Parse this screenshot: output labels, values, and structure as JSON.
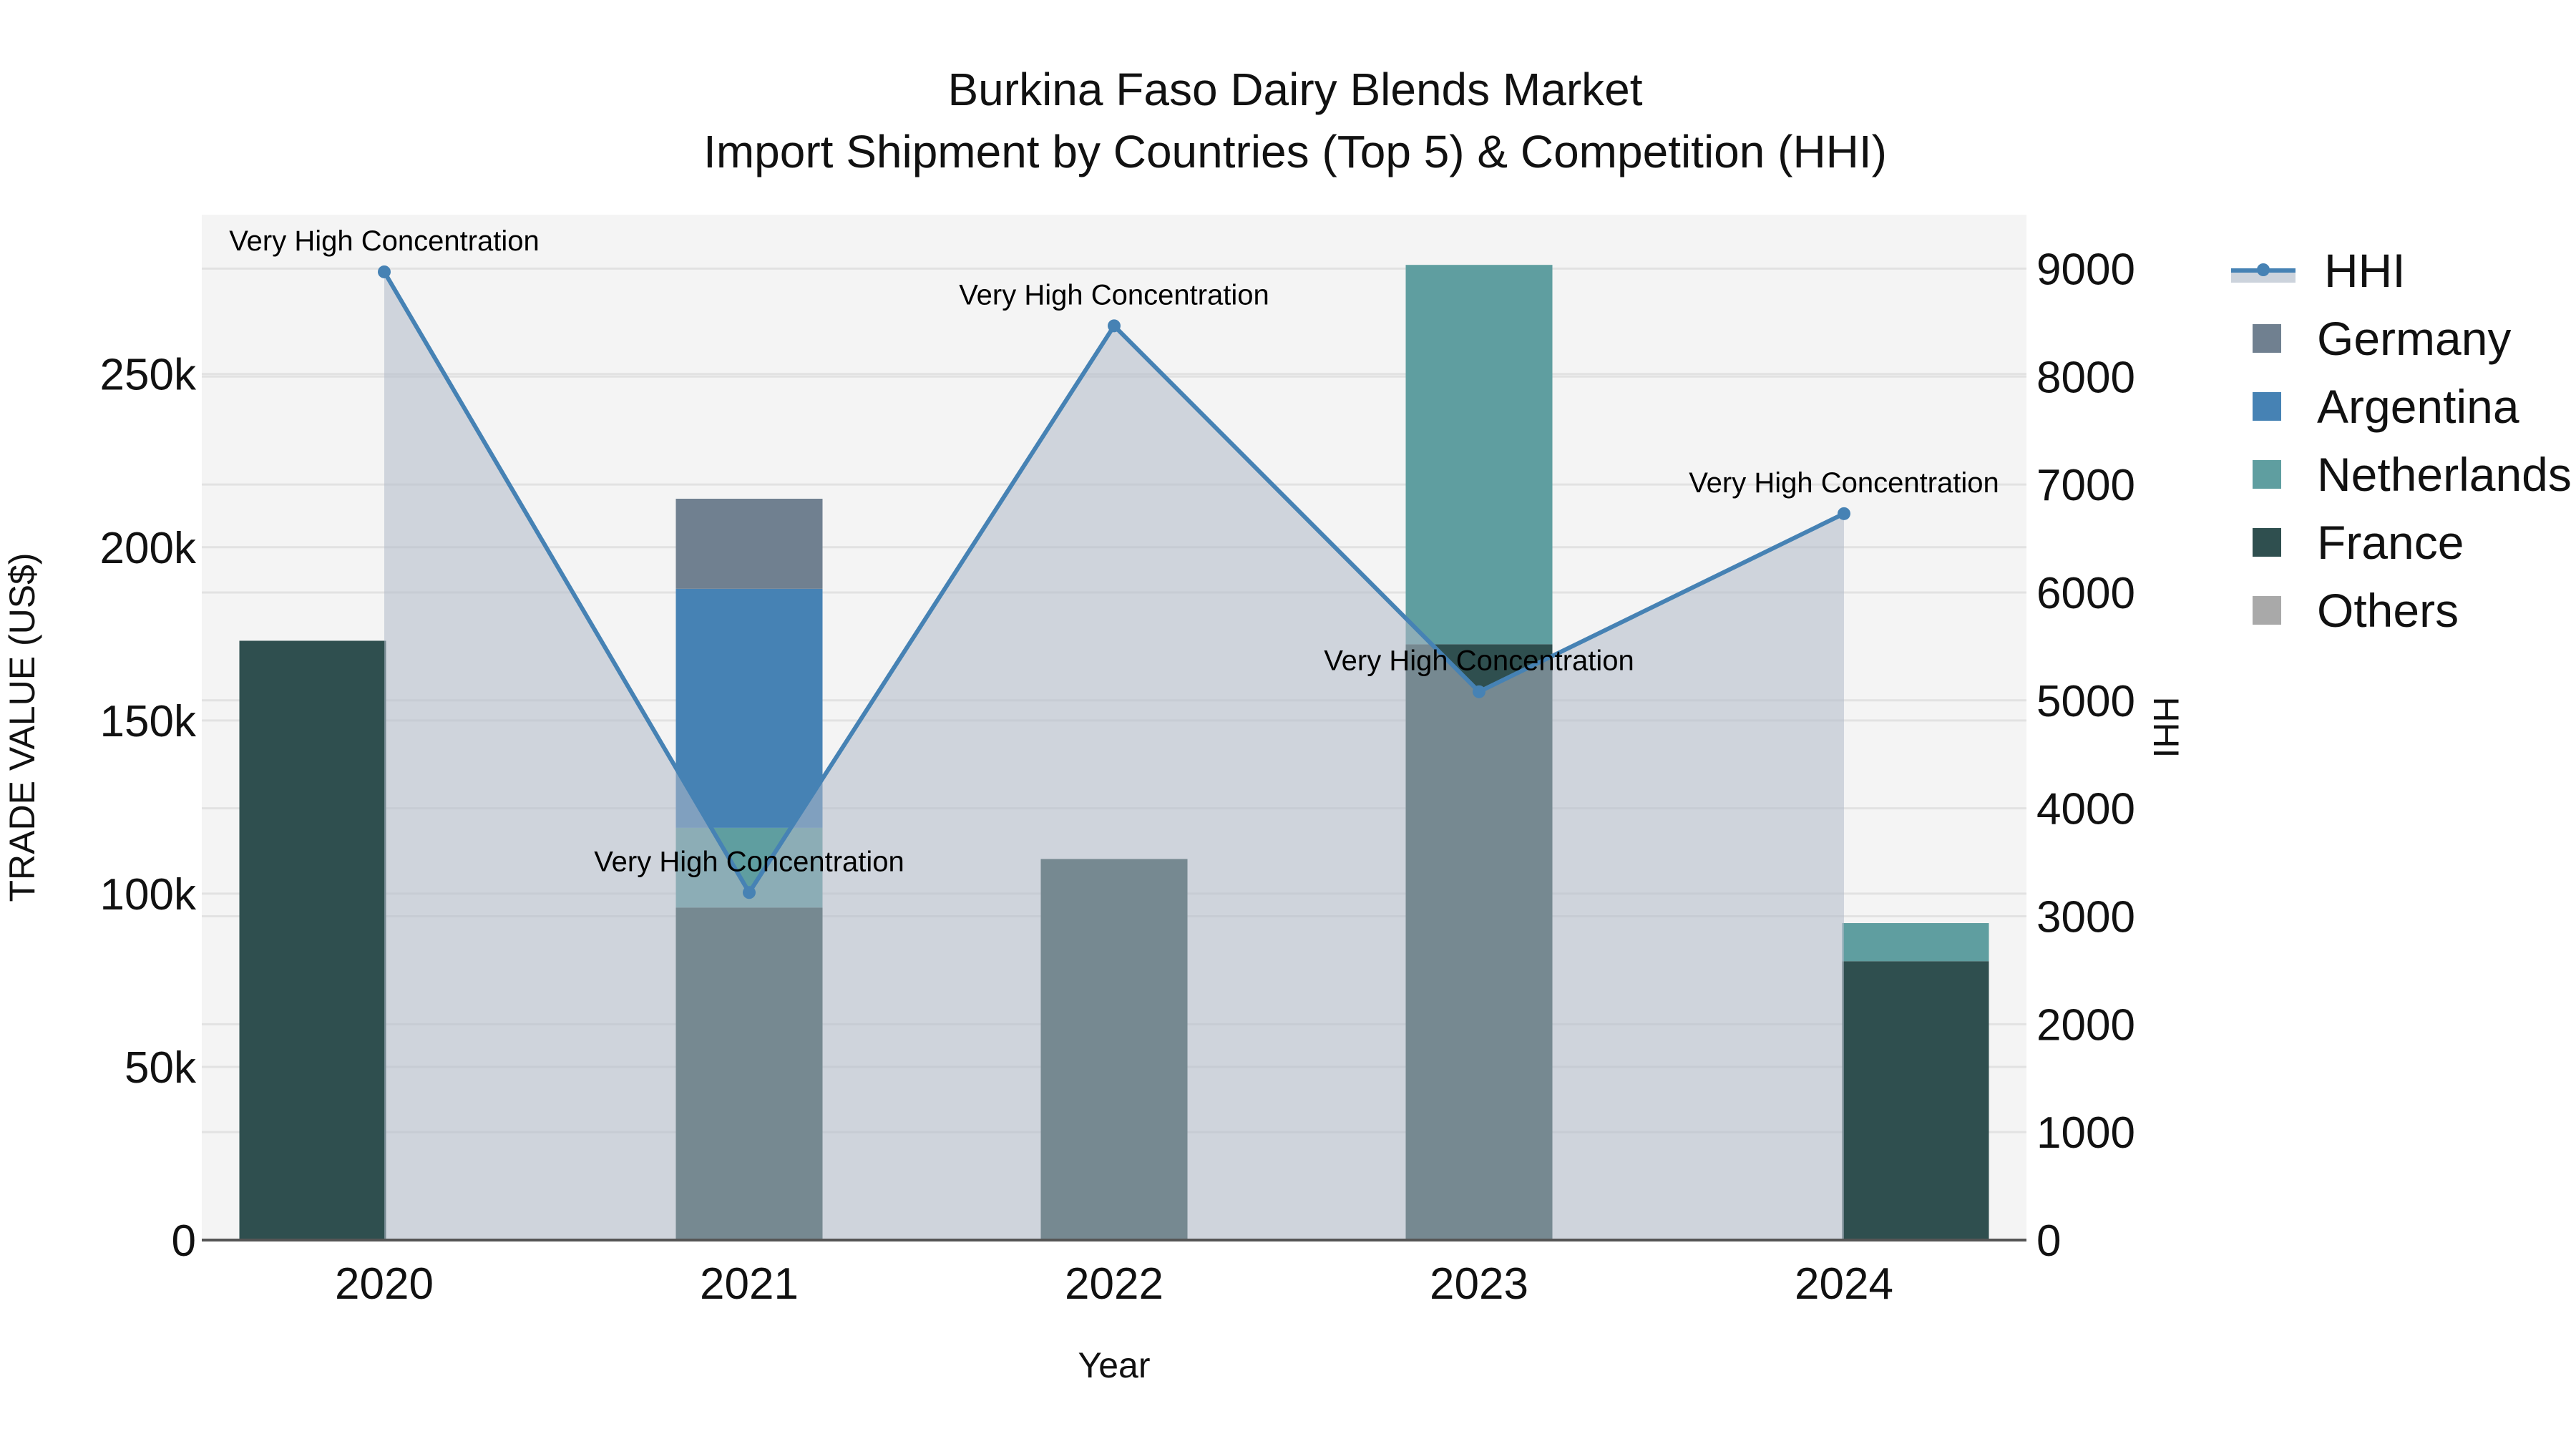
{
  "title": {
    "line1": "Burkina Faso Dairy Blends Market",
    "line2": "Import Shipment by Countries (Top 5) & Competition (HHI)"
  },
  "axes": {
    "x_label": "Year",
    "y_left_label": "TRADE VALUE (US$)",
    "y_right_label": "HHI",
    "x_ticks": [
      "2020",
      "2021",
      "2022",
      "2023",
      "2024"
    ],
    "y_left_ticks": [
      "0",
      "50k",
      "100k",
      "150k",
      "200k",
      "250k"
    ],
    "y_right_ticks": [
      "0",
      "1000",
      "2000",
      "3000",
      "4000",
      "5000",
      "6000",
      "7000",
      "8000",
      "9000"
    ]
  },
  "legend": {
    "items": [
      {
        "label": "HHI",
        "color": "#4682b4",
        "symbol": "line-marker-fill"
      },
      {
        "label": "Germany",
        "color": "#708090"
      },
      {
        "label": "Argentina",
        "color": "#4682b4"
      },
      {
        "label": "Netherlands",
        "color": "#5f9ea0"
      },
      {
        "label": "France",
        "color": "#2f4f4f"
      },
      {
        "label": "Others",
        "color": "#a9a9a9"
      }
    ]
  },
  "annotations": [
    {
      "year": "2020",
      "text": "Very High Concentration"
    },
    {
      "year": "2021",
      "text": "Very High Concentration"
    },
    {
      "year": "2022",
      "text": "Very High Concentration"
    },
    {
      "year": "2023",
      "text": "Very High Concentration"
    },
    {
      "year": "2024",
      "text": "Very High Concentration"
    }
  ],
  "chart_data": {
    "type": "bar",
    "title": "Burkina Faso Dairy Blends Market — Import Shipment by Countries (Top 5) & Competition (HHI)",
    "xlabel": "Year",
    "ylabel": "TRADE VALUE (US$)",
    "y2label": "HHI",
    "categories": [
      "2020",
      "2021",
      "2022",
      "2023",
      "2024"
    ],
    "stacked": true,
    "ylim": [
      0,
      296000
    ],
    "y2lim": [
      0,
      9500
    ],
    "grid": true,
    "legend_position": "right",
    "series": [
      {
        "name": "France",
        "type": "bar",
        "axis": "left",
        "color": "#2f4f4f",
        "values": [
          173000,
          96000,
          110000,
          172000,
          80500
        ]
      },
      {
        "name": "Netherlands",
        "type": "bar",
        "axis": "left",
        "color": "#5f9ea0",
        "values": [
          0,
          23000,
          0,
          109500,
          11000
        ]
      },
      {
        "name": "Argentina",
        "type": "bar",
        "axis": "left",
        "color": "#4682b4",
        "values": [
          0,
          69000,
          0,
          0,
          0
        ]
      },
      {
        "name": "Germany",
        "type": "bar",
        "axis": "left",
        "color": "#708090",
        "values": [
          0,
          26000,
          0,
          0,
          0
        ]
      },
      {
        "name": "Others",
        "type": "bar",
        "axis": "left",
        "color": "#a9a9a9",
        "values": [
          0,
          0,
          0,
          0,
          0
        ]
      },
      {
        "name": "HHI",
        "type": "line",
        "axis": "right",
        "color": "#4682b4",
        "fill": "tozeroy",
        "values": [
          8970,
          3220,
          8470,
          5080,
          6730
        ]
      }
    ],
    "annotations": [
      "Very High Concentration",
      "Very High Concentration",
      "Very High Concentration",
      "Very High Concentration",
      "Very High Concentration"
    ]
  }
}
